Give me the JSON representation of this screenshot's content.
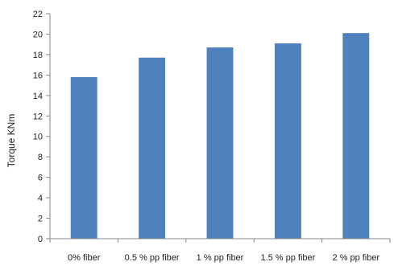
{
  "chart_data": {
    "type": "bar",
    "title": "",
    "xlabel": "",
    "ylabel": "Torque KNm",
    "categories": [
      "0% fiber",
      "0.5 % pp fiber",
      "1 % pp fiber",
      "1.5 % pp fiber",
      "2 % pp fiber"
    ],
    "series": [
      {
        "values": [
          15.8,
          17.7,
          18.7,
          19.1,
          20.1
        ]
      }
    ],
    "ylim": [
      0,
      22
    ],
    "yticks": [
      0,
      2,
      4,
      6,
      8,
      10,
      12,
      14,
      16,
      18,
      20,
      22
    ],
    "grid": false,
    "legend": "none",
    "colors": {
      "bar": "#4F81BD",
      "axis": "#868686"
    }
  }
}
